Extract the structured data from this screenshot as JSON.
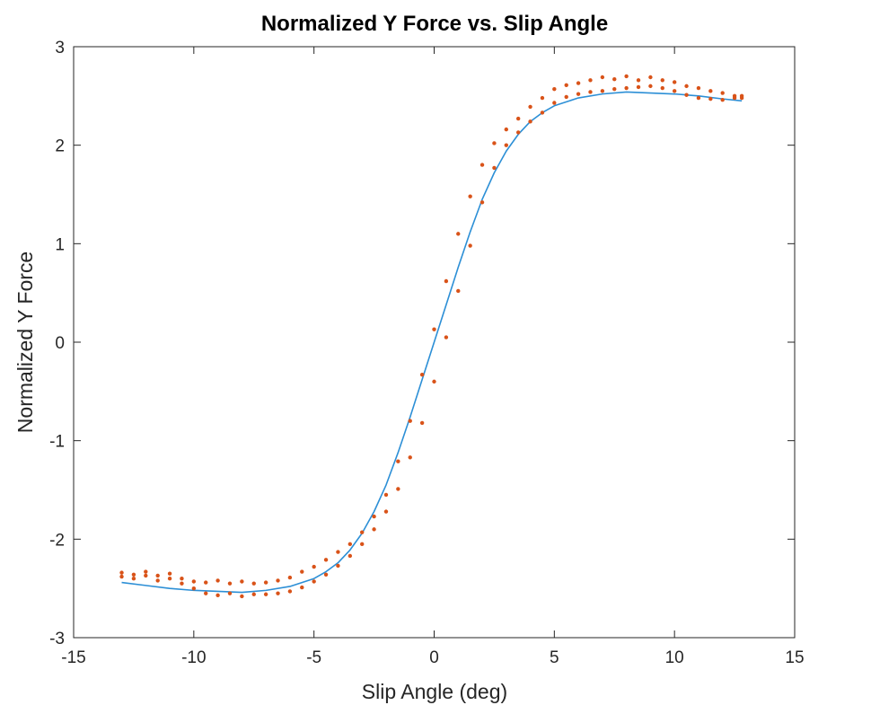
{
  "colors": {
    "fit_line": "#2C8FD6",
    "measured_points": "#D95319",
    "axes": "#262626",
    "background": "#ffffff"
  },
  "chart_data": {
    "type": "scatter",
    "title": "Normalized Y Force vs. Slip Angle",
    "xlabel": "Slip Angle (deg)",
    "ylabel": "Normalized Y Force",
    "xlim": [
      -15,
      15
    ],
    "ylim": [
      -3,
      3
    ],
    "xticks": [
      -15,
      -10,
      -5,
      0,
      5,
      10,
      15
    ],
    "yticks": [
      -3,
      -2,
      -1,
      0,
      1,
      2,
      3
    ],
    "xtick_labels": [
      "-15",
      "-10",
      "-5",
      "0",
      "5",
      "10",
      "15"
    ],
    "ytick_labels": [
      "-3",
      "-2",
      "-1",
      "0",
      "1",
      "2",
      "3"
    ],
    "grid": false,
    "box": true,
    "series": [
      {
        "kind": "line",
        "color": "#2C8FD6",
        "x": [
          -13,
          -12,
          -11,
          -10,
          -9,
          -8,
          -7,
          -6,
          -5,
          -4.5,
          -4,
          -3.5,
          -3,
          -2.5,
          -2,
          -1.5,
          -1,
          -0.5,
          0,
          0.5,
          1,
          1.5,
          2,
          2.5,
          3,
          3.5,
          4,
          4.5,
          5,
          6,
          7,
          8,
          9,
          10,
          11,
          12,
          12.8
        ],
        "y": [
          -2.44,
          -2.47,
          -2.5,
          -2.52,
          -2.53,
          -2.54,
          -2.52,
          -2.48,
          -2.4,
          -2.33,
          -2.24,
          -2.11,
          -1.94,
          -1.72,
          -1.45,
          -1.12,
          -0.76,
          -0.38,
          0.0,
          0.38,
          0.76,
          1.12,
          1.45,
          1.72,
          1.94,
          2.11,
          2.24,
          2.33,
          2.4,
          2.48,
          2.52,
          2.54,
          2.53,
          2.52,
          2.5,
          2.47,
          2.45
        ]
      },
      {
        "kind": "scatter",
        "color": "#D95319",
        "branch": "upper",
        "x": [
          -13,
          -12.5,
          -12,
          -11.5,
          -11,
          -10.5,
          -10,
          -9.5,
          -9,
          -8.5,
          -8,
          -7.5,
          -7,
          -6.5,
          -6,
          -5.5,
          -5,
          -4.5,
          -4,
          -3.5,
          -3,
          -2.5,
          -2,
          -1.5,
          -1,
          -0.5,
          0,
          0.5,
          1,
          1.5,
          2,
          2.5,
          3,
          3.5,
          4,
          4.5,
          5,
          5.5,
          6,
          6.5,
          7,
          7.5,
          8,
          8.5,
          9,
          9.5,
          10,
          10.5,
          11,
          11.5,
          12,
          12.5,
          12.8
        ],
        "y": [
          -2.34,
          -2.36,
          -2.33,
          -2.37,
          -2.35,
          -2.4,
          -2.43,
          -2.44,
          -2.42,
          -2.45,
          -2.43,
          -2.45,
          -2.44,
          -2.42,
          -2.39,
          -2.33,
          -2.28,
          -2.21,
          -2.13,
          -2.05,
          -1.93,
          -1.77,
          -1.55,
          -1.21,
          -0.8,
          -0.33,
          0.13,
          0.62,
          1.1,
          1.48,
          1.8,
          2.02,
          2.16,
          2.27,
          2.39,
          2.48,
          2.57,
          2.61,
          2.63,
          2.66,
          2.69,
          2.67,
          2.7,
          2.66,
          2.69,
          2.66,
          2.64,
          2.6,
          2.58,
          2.55,
          2.53,
          2.5,
          2.48
        ]
      },
      {
        "kind": "scatter",
        "color": "#D95319",
        "branch": "lower",
        "x": [
          -13,
          -12.5,
          -12,
          -11.5,
          -11,
          -10.5,
          -10,
          -9.5,
          -9,
          -8.5,
          -8,
          -7.5,
          -7,
          -6.5,
          -6,
          -5.5,
          -5,
          -4.5,
          -4,
          -3.5,
          -3,
          -2.5,
          -2,
          -1.5,
          -1,
          -0.5,
          0,
          0.5,
          1,
          1.5,
          2,
          2.5,
          3,
          3.5,
          4,
          4.5,
          5,
          5.5,
          6,
          6.5,
          7,
          7.5,
          8,
          8.5,
          9,
          9.5,
          10,
          10.5,
          11,
          11.5,
          12,
          12.5,
          12.8
        ],
        "y": [
          -2.38,
          -2.4,
          -2.37,
          -2.42,
          -2.4,
          -2.45,
          -2.5,
          -2.55,
          -2.57,
          -2.55,
          -2.58,
          -2.56,
          -2.56,
          -2.55,
          -2.53,
          -2.49,
          -2.43,
          -2.36,
          -2.27,
          -2.17,
          -2.05,
          -1.9,
          -1.72,
          -1.49,
          -1.17,
          -0.82,
          -0.4,
          0.05,
          0.52,
          0.98,
          1.42,
          1.77,
          2.0,
          2.13,
          2.24,
          2.33,
          2.43,
          2.49,
          2.52,
          2.54,
          2.55,
          2.57,
          2.58,
          2.59,
          2.6,
          2.58,
          2.55,
          2.51,
          2.48,
          2.47,
          2.46,
          2.48,
          2.5
        ]
      }
    ]
  }
}
